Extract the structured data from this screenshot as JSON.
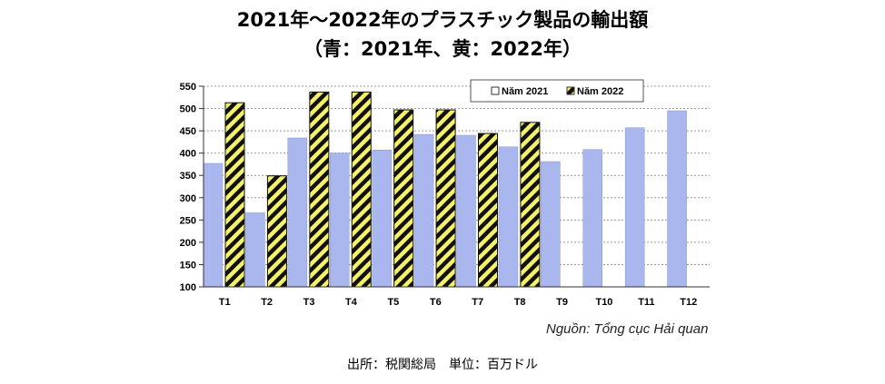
{
  "title_line1": "2021年～2022年のプラスチック製品の輸出額",
  "title_line2": "（青：2021年、黄：2022年）",
  "source_note": "Nguồn: Tổng cục Hải quan",
  "caption": "出所：税関総局　単位：百万ドル",
  "colors": {
    "series2021": "#aab6ee",
    "series2022_fill": "#f5f26a",
    "series2022_hatch": "#111111",
    "grid": "#999999"
  },
  "chart_data": {
    "type": "bar",
    "categories": [
      "T1",
      "T2",
      "T3",
      "T4",
      "T5",
      "T6",
      "T7",
      "T8",
      "T9",
      "T10",
      "T11",
      "T12"
    ],
    "ylim": [
      100,
      550
    ],
    "yticks": [
      100,
      150,
      200,
      250,
      300,
      350,
      400,
      450,
      500,
      550
    ],
    "series": [
      {
        "name": "Năm 2021",
        "values": [
          377,
          266,
          434,
          400,
          407,
          442,
          440,
          414,
          381,
          408,
          457,
          495
        ]
      },
      {
        "name": "Năm 2022",
        "values": [
          513,
          349,
          537,
          537,
          497,
          497,
          444,
          469,
          null,
          null,
          null,
          null
        ]
      }
    ],
    "legend_position": "top-right",
    "grid": true
  }
}
